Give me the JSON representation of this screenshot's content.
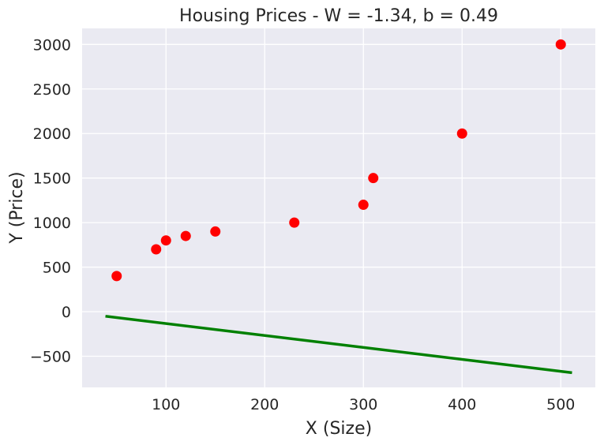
{
  "chart_data": {
    "type": "scatter",
    "title": "Housing Prices - W = -1.34, b = 0.49",
    "xlabel": "X (Size)",
    "ylabel": "Y (Price)",
    "xlim": [
      15,
      535
    ],
    "ylim": [
      -850,
      3180
    ],
    "xticks": [
      100,
      200,
      300,
      400,
      500
    ],
    "yticks": [
      -500,
      0,
      500,
      1000,
      1500,
      2000,
      2500,
      3000
    ],
    "xtick_labels": [
      "100",
      "200",
      "300",
      "400",
      "500"
    ],
    "ytick_labels": [
      "−500",
      "0",
      "500",
      "1000",
      "1500",
      "2000",
      "2500",
      "3000"
    ],
    "grid": true,
    "series": [
      {
        "type": "scatter",
        "color": "#ff0000",
        "x": [
          50,
          90,
          100,
          120,
          150,
          230,
          300,
          310,
          400,
          500
        ],
        "y": [
          400,
          700,
          800,
          850,
          900,
          1000,
          1200,
          1500,
          2000,
          3000
        ]
      },
      {
        "type": "line",
        "color": "#008000",
        "x": [
          40,
          510
        ],
        "y": [
          -53.1,
          -682.9
        ]
      }
    ]
  }
}
